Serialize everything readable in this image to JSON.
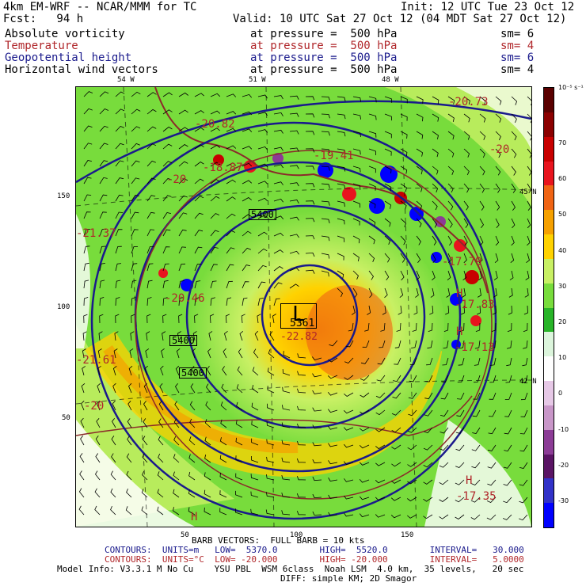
{
  "header": {
    "model": "4km EM-WRF -- NCAR/MMM for TC",
    "init": "Init: 12 UTC Tue 23 Oct 12",
    "fcst": "Fcst:   94 h",
    "valid": "Valid: 10 UTC Sat 27 Oct 12 (04 MDT Sat 27 Oct 12)"
  },
  "fields": [
    {
      "name": "Absolute vorticity",
      "pressure": "at pressure =  500 hPa",
      "sm": "sm= 6",
      "color": "#000000"
    },
    {
      "name": "Temperature",
      "pressure": "at pressure =  500 hPa",
      "sm": "sm= 4",
      "color": "#b0262a"
    },
    {
      "name": "Geopotential height",
      "pressure": "at pressure =  500 hPa",
      "sm": "sm= 6",
      "color": "#1a1a8c"
    },
    {
      "name": "Horizontal wind vectors",
      "pressure": "at pressure =  500 hPa",
      "sm": "sm= 4",
      "color": "#000000"
    }
  ],
  "axes": {
    "top_lon": [
      "54 W",
      "51 W",
      "48 W"
    ],
    "right_lat": [
      "45 N",
      "42 N"
    ],
    "left_y": [
      "150",
      "100",
      "50"
    ],
    "bottom_x": [
      "50",
      "100",
      "150"
    ]
  },
  "map_labels": {
    "low_center": "L",
    "low_height": "5361",
    "low_temp": "-22.82",
    "height_5400_a": "5400",
    "height_5400_b": "5400",
    "height_5400_c": "5400",
    "temp_labels": [
      "-20.73",
      "-20",
      "-20.82",
      "-18.87",
      "-20",
      "-21.37",
      "-17.79",
      "-20.46",
      "-21.61",
      "-17.83",
      "-17.13",
      "-20",
      "-17.35",
      "-19.41"
    ],
    "highs": [
      "H",
      "H",
      "H",
      "H"
    ]
  },
  "colorbar": {
    "unit": "10⁻⁵ s⁻¹",
    "levels": [
      "70",
      "60",
      "50",
      "40",
      "30",
      "20",
      "10",
      "0",
      "-10",
      "-20",
      "-30"
    ],
    "colors": [
      "#5a0000",
      "#8b0000",
      "#c80000",
      "#e8141e",
      "#f06414",
      "#f5a000",
      "#ffd200",
      "#c8f064",
      "#78dc3c",
      "#28b428",
      "#dcf5dc",
      "#ffffff",
      "#e6c8e6",
      "#c896c8",
      "#8c3c96",
      "#5a1464",
      "#3232c8",
      "#0000ff"
    ]
  },
  "footer": {
    "barb": "BARB VECTORS:  FULL BARB = 10 kts",
    "contours_blue": "CONTOURS:  UNITS=m   LOW=  5370.0        HIGH=  5520.0        INTERVAL=   30.000",
    "contours_red": "CONTOURS:  UNITS=°C  LOW= -20.000        HIGH= -20.000        INTERVAL=   5.0000",
    "model_info": "Model Info: V3.3.1 M No Cu    YSU PBL  WSM 6class  Noah LSM  4.0 km,  35 levels,   20 sec",
    "diff": "DIFF: simple KM; 2D Smagor"
  }
}
